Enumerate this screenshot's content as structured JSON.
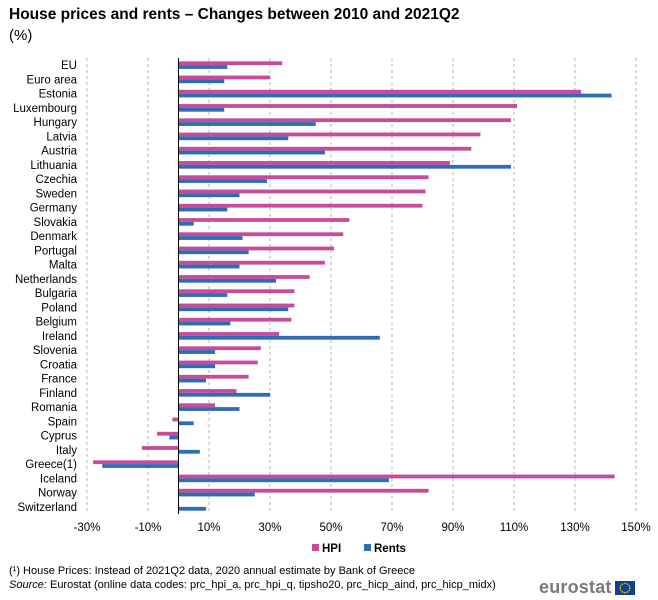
{
  "title": "House prices and rents – Changes between 2010 and 2021Q2",
  "unit": "(%)",
  "footnote": "(¹) House Prices: Instead of 2021Q2 data, 2020 annual estimate by Bank of Greece",
  "source_label": "Source:",
  "source_text": " Eurostat (online data codes: prc_hpi_a, prc_hpi_q, tipsho20, prc_hicp_aind, prc_hicp_midx)",
  "logo_text": "eurostat",
  "colors": {
    "hpi": "#c74b99",
    "rents": "#2e6cb5",
    "grid": "#b4b4b4",
    "axis": "#000000"
  },
  "chart_data": {
    "type": "bar",
    "orientation": "horizontal",
    "categories": [
      "EU",
      "Euro area",
      "Estonia",
      "Luxembourg",
      "Hungary",
      "Latvia",
      "Austria",
      "Lithuania",
      "Czechia",
      "Sweden",
      "Germany",
      "Slovakia",
      "Denmark",
      "Portugal",
      "Malta",
      "Netherlands",
      "Bulgaria",
      "Poland",
      "Belgium",
      "Ireland",
      "Slovenia",
      "Croatia",
      "France",
      "Finland",
      "Romania",
      "Spain",
      "Cyprus",
      "Italy",
      "Greece(1)",
      "Iceland",
      "Norway",
      "Switzerland"
    ],
    "series": [
      {
        "name": "HPI",
        "color": "#c74b99",
        "values": [
          34,
          30,
          132,
          111,
          109,
          99,
          96,
          89,
          82,
          81,
          80,
          56,
          54,
          51,
          48,
          43,
          38,
          38,
          37,
          33,
          27,
          26,
          23,
          19,
          12,
          -2,
          -7,
          -12,
          -28,
          143,
          82,
          null
        ]
      },
      {
        "name": "Rents",
        "color": "#2e6cb5",
        "values": [
          16,
          15,
          142,
          15,
          45,
          36,
          48,
          109,
          29,
          20,
          16,
          5,
          21,
          23,
          20,
          32,
          16,
          36,
          17,
          66,
          12,
          12,
          9,
          30,
          20,
          5,
          -3,
          7,
          -25,
          69,
          25,
          9
        ]
      }
    ],
    "xlim": [
      -30,
      150
    ],
    "xticks": [
      -30,
      -10,
      10,
      30,
      50,
      70,
      90,
      110,
      130,
      150
    ],
    "xtick_labels": [
      "-30%",
      "-10%",
      "10%",
      "30%",
      "50%",
      "70%",
      "90%",
      "110%",
      "130%",
      "150%"
    ],
    "grid": "vertical dashed",
    "legend_position": "bottom-center"
  }
}
